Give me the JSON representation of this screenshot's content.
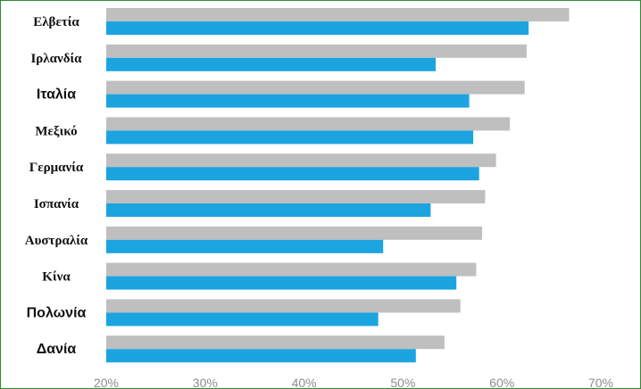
{
  "chart_data": {
    "type": "bar",
    "orientation": "horizontal",
    "categories": [
      "Ελβετία",
      "Ιρλανδία",
      "Ιταλία",
      "Μεξικό",
      "Γερμανία",
      "Ισπανία",
      "Αυστραλία",
      "Κίνα",
      "Πολωνία",
      "Δανία"
    ],
    "series": [
      {
        "values": [
          66.8,
          62.5,
          62.3,
          60.8,
          59.4,
          58.3,
          58.0,
          57.4,
          55.8,
          54.2
        ]
      },
      {
        "values": [
          62.7,
          53.3,
          56.7,
          57.1,
          57.7,
          52.8,
          48.0,
          55.4,
          47.5,
          51.3
        ]
      }
    ],
    "colors": [
      "#bfbfbf",
      "#1ca4e0"
    ],
    "xlim": [
      20,
      70
    ],
    "xticks": [
      "20%",
      "30%",
      "40%",
      "50%",
      "60%",
      "70%"
    ],
    "xtick_values": [
      20,
      30,
      40,
      50,
      60,
      70
    ],
    "grid": false,
    "legend": "none",
    "title": "",
    "xlabel": "",
    "ylabel": ""
  }
}
